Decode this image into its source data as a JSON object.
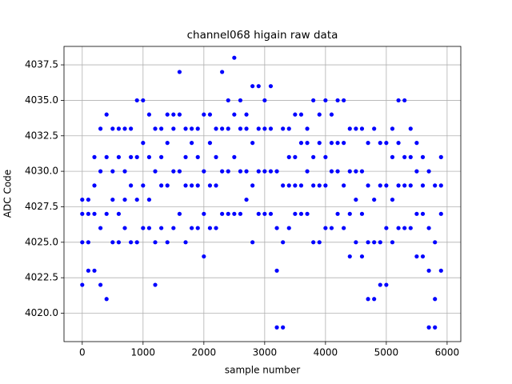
{
  "chart_data": {
    "type": "scatter",
    "title": "channel068 higain raw data",
    "x_label": "sample number",
    "y_label": "ADC Code",
    "color": "#0000ff",
    "grid": true,
    "xlim": [
      -300,
      6225
    ],
    "xticks": [
      0,
      1000,
      2000,
      3000,
      4000,
      5000,
      6000
    ],
    "ylim": [
      4018,
      4038.8
    ],
    "yticks": [
      {
        "value": 4020,
        "label": "4020.0"
      },
      4022.5,
      {
        "value": 4025,
        "label": "4025.0"
      },
      4027.5,
      {
        "value": 4030,
        "label": "4030.0"
      },
      4032.5,
      {
        "value": 4035,
        "label": "4035.0"
      },
      4037.5
    ],
    "x": [
      0,
      0,
      0,
      0,
      100,
      100,
      100,
      100,
      200,
      200,
      200,
      200,
      300,
      300,
      300,
      300,
      400,
      400,
      400,
      400,
      500,
      500,
      500,
      500,
      600,
      600,
      600,
      600,
      700,
      700,
      700,
      700,
      800,
      800,
      800,
      800,
      900,
      900,
      900,
      900,
      1000,
      1000,
      1000,
      1000,
      1100,
      1100,
      1100,
      1100,
      1200,
      1200,
      1200,
      1200,
      1300,
      1300,
      1300,
      1300,
      1400,
      1400,
      1400,
      1400,
      1500,
      1500,
      1500,
      1500,
      1600,
      1600,
      1600,
      1600,
      1700,
      1700,
      1700,
      1700,
      1800,
      1800,
      1800,
      1800,
      1900,
      1900,
      1900,
      1900,
      2000,
      2000,
      2000,
      2000,
      2100,
      2100,
      2100,
      2100,
      2200,
      2200,
      2200,
      2200,
      2300,
      2300,
      2300,
      2300,
      2400,
      2400,
      2400,
      2400,
      2500,
      2500,
      2500,
      2500,
      2600,
      2600,
      2600,
      2600,
      2700,
      2700,
      2700,
      2700,
      2800,
      2800,
      2800,
      2800,
      2900,
      2900,
      2900,
      2900,
      3000,
      3000,
      3000,
      3000,
      3100,
      3100,
      3100,
      3100,
      3200,
      3200,
      3200,
      3200,
      3300,
      3300,
      3300,
      3300,
      3400,
      3400,
      3400,
      3400,
      3500,
      3500,
      3500,
      3500,
      3600,
      3600,
      3600,
      3600,
      3700,
      3700,
      3700,
      3700,
      3800,
      3800,
      3800,
      3800,
      3900,
      3900,
      3900,
      3900,
      4000,
      4000,
      4000,
      4000,
      4100,
      4100,
      4100,
      4100,
      4200,
      4200,
      4200,
      4200,
      4300,
      4300,
      4300,
      4300,
      4400,
      4400,
      4400,
      4400,
      4500,
      4500,
      4500,
      4500,
      4600,
      4600,
      4600,
      4600,
      4700,
      4700,
      4700,
      4700,
      4800,
      4800,
      4800,
      4800,
      4900,
      4900,
      4900,
      4900,
      5000,
      5000,
      5000,
      5000,
      5100,
      5100,
      5100,
      5100,
      5200,
      5200,
      5200,
      5200,
      5300,
      5300,
      5300,
      5300,
      5400,
      5400,
      5400,
      5400,
      5500,
      5500,
      5500,
      5500,
      5600,
      5600,
      5600,
      5600,
      5700,
      5700,
      5700,
      5700,
      5800,
      5800,
      5800,
      5800,
      5900,
      5900,
      5900,
      5900
    ],
    "values": [
      4022,
      4025,
      4027,
      4028,
      4023,
      4025,
      4027,
      4028,
      4023,
      4027,
      4029,
      4031,
      4022,
      4026,
      4030,
      4033,
      4021,
      4027,
      4031,
      4034,
      4025,
      4028,
      4030,
      4033,
      4025,
      4027,
      4031,
      4033,
      4026,
      4028,
      4030,
      4033,
      4025,
      4029,
      4031,
      4033,
      4025,
      4028,
      4031,
      4035,
      4026,
      4029,
      4032,
      4035,
      4026,
      4028,
      4031,
      4034,
      4022,
      4025,
      4030,
      4033,
      4026,
      4029,
      4031,
      4033,
      4025,
      4029,
      4032,
      4034,
      4026,
      4030,
      4033,
      4034,
      4027,
      4030,
      4034,
      4037,
      4025,
      4029,
      4031,
      4033,
      4026,
      4029,
      4032,
      4033,
      4026,
      4029,
      4031,
      4033,
      4024,
      4027,
      4030,
      4034,
      4026,
      4029,
      4032,
      4034,
      4026,
      4029,
      4031,
      4033,
      4027,
      4030,
      4033,
      4037,
      4027,
      4030,
      4033,
      4035,
      4027,
      4031,
      4034,
      4038,
      4027,
      4030,
      4033,
      4035,
      4028,
      4030,
      4033,
      4034,
      4025,
      4029,
      4032,
      4036,
      4027,
      4030,
      4033,
      4036,
      4027,
      4030,
      4033,
      4035,
      4027,
      4030,
      4033,
      4036,
      4019,
      4023,
      4026,
      4030,
      4019,
      4025,
      4029,
      4033,
      4026,
      4029,
      4031,
      4033,
      4027,
      4029,
      4031,
      4034,
      4027,
      4029,
      4032,
      4034,
      4027,
      4030,
      4032,
      4033,
      4025,
      4029,
      4031,
      4035,
      4025,
      4029,
      4032,
      4034,
      4026,
      4029,
      4031,
      4035,
      4026,
      4030,
      4032,
      4034,
      4027,
      4030,
      4032,
      4035,
      4026,
      4029,
      4032,
      4035,
      4024,
      4027,
      4030,
      4033,
      4025,
      4028,
      4030,
      4033,
      4024,
      4027,
      4030,
      4033,
      4021,
      4025,
      4029,
      4032,
      4021,
      4025,
      4028,
      4033,
      4022,
      4025,
      4029,
      4032,
      4022,
      4026,
      4029,
      4032,
      4025,
      4028,
      4031,
      4033,
      4026,
      4029,
      4032,
      4035,
      4026,
      4029,
      4031,
      4035,
      4026,
      4029,
      4031,
      4033,
      4024,
      4027,
      4030,
      4032,
      4024,
      4027,
      4029,
      4031,
      4019,
      4023,
      4026,
      4030,
      4019,
      4021,
      4025,
      4029,
      4023,
      4027,
      4029,
      4031
    ]
  }
}
